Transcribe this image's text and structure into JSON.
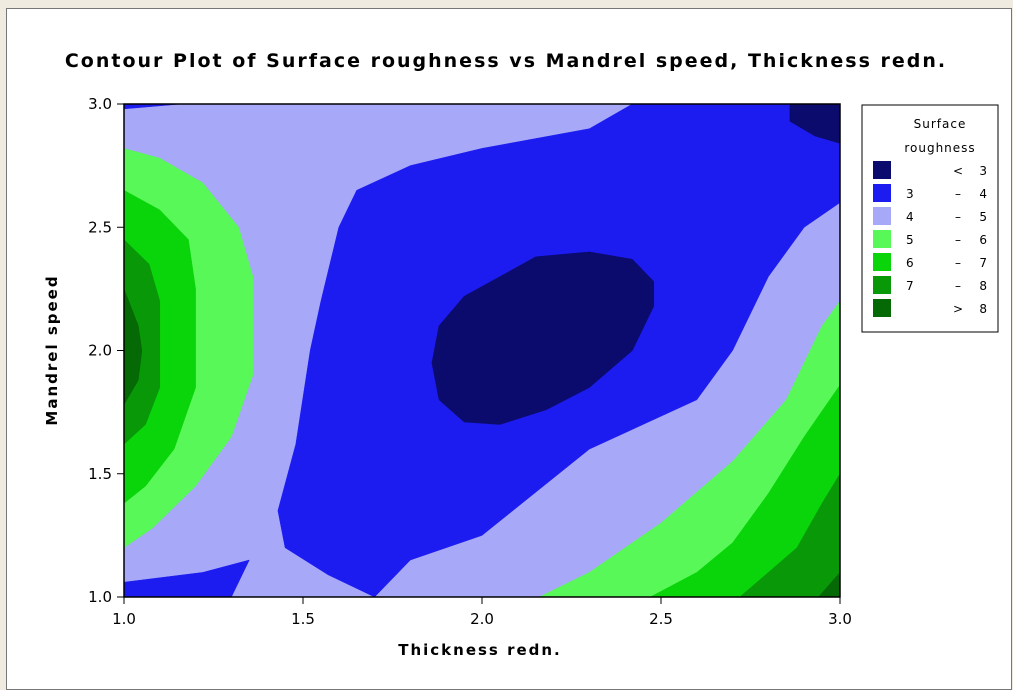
{
  "chart_data": {
    "type": "contour",
    "title": "Contour Plot of Surface roughness vs Mandrel speed, Thickness redn.",
    "xlabel": "Thickness redn.",
    "ylabel": "Mandrel speed",
    "xlim": [
      1.0,
      3.0
    ],
    "ylim": [
      1.0,
      3.0
    ],
    "xticks": [
      "1.0",
      "1.5",
      "2.0",
      "2.5",
      "3.0"
    ],
    "yticks": [
      "1.0",
      "1.5",
      "2.0",
      "2.5",
      "3.0"
    ],
    "legend": {
      "title_lines": [
        "Surface",
        "roughness"
      ],
      "placement": "right",
      "entries": [
        {
          "lo": "",
          "sep": "<",
          "hi": "3",
          "color": "#0b0b6e"
        },
        {
          "lo": "3",
          "sep": "–",
          "hi": "4",
          "color": "#1c1cf0"
        },
        {
          "lo": "4",
          "sep": "–",
          "hi": "5",
          "color": "#a8a8f8"
        },
        {
          "lo": "5",
          "sep": "–",
          "hi": "6",
          "color": "#58f858"
        },
        {
          "lo": "6",
          "sep": "–",
          "hi": "7",
          "color": "#0ad40a"
        },
        {
          "lo": "7",
          "sep": "–",
          "hi": "8",
          "color": "#089808"
        },
        {
          "lo": "",
          "sep": ">",
          "hi": "8",
          "color": "#056905"
        }
      ]
    },
    "regions": [
      {
        "level": "4-5",
        "points": [
          [
            1.0,
            3.0
          ],
          [
            3.0,
            3.0
          ],
          [
            3.0,
            1.0
          ],
          [
            1.0,
            1.0
          ]
        ]
      },
      {
        "level": "5-6",
        "points": [
          [
            1.0,
            2.82
          ],
          [
            1.1,
            2.78
          ],
          [
            1.22,
            2.68
          ],
          [
            1.32,
            2.5
          ],
          [
            1.36,
            2.3
          ],
          [
            1.36,
            1.9
          ],
          [
            1.3,
            1.65
          ],
          [
            1.2,
            1.45
          ],
          [
            1.08,
            1.28
          ],
          [
            1.0,
            1.2
          ]
        ]
      },
      {
        "level": "6-7",
        "points": [
          [
            1.0,
            2.65
          ],
          [
            1.1,
            2.57
          ],
          [
            1.18,
            2.45
          ],
          [
            1.2,
            2.25
          ],
          [
            1.2,
            1.85
          ],
          [
            1.14,
            1.6
          ],
          [
            1.06,
            1.45
          ],
          [
            1.0,
            1.38
          ]
        ]
      },
      {
        "level": "7-8",
        "points": [
          [
            1.0,
            2.45
          ],
          [
            1.07,
            2.35
          ],
          [
            1.1,
            2.2
          ],
          [
            1.1,
            1.85
          ],
          [
            1.06,
            1.7
          ],
          [
            1.0,
            1.62
          ]
        ]
      },
      {
        "level": ">8",
        "points": [
          [
            1.0,
            2.25
          ],
          [
            1.04,
            2.1
          ],
          [
            1.05,
            2.0
          ],
          [
            1.04,
            1.88
          ],
          [
            1.0,
            1.78
          ]
        ]
      },
      {
        "level": "3-4",
        "points": [
          [
            1.7,
            1.0
          ],
          [
            1.57,
            1.09
          ],
          [
            1.45,
            1.2
          ],
          [
            1.43,
            1.35
          ],
          [
            1.48,
            1.62
          ],
          [
            1.52,
            2.0
          ],
          [
            1.55,
            2.2
          ],
          [
            1.6,
            2.5
          ],
          [
            1.65,
            2.65
          ],
          [
            1.8,
            2.75
          ],
          [
            2.0,
            2.82
          ],
          [
            2.3,
            2.9
          ],
          [
            2.42,
            3.0
          ],
          [
            3.0,
            3.0
          ],
          [
            3.0,
            2.6
          ],
          [
            2.9,
            2.5
          ],
          [
            2.8,
            2.3
          ],
          [
            2.7,
            2.0
          ],
          [
            2.6,
            1.8
          ],
          [
            2.3,
            1.6
          ],
          [
            2.0,
            1.25
          ],
          [
            1.8,
            1.15
          ]
        ]
      },
      {
        "level": "3-4",
        "points": [
          [
            1.0,
            3.0
          ],
          [
            1.16,
            3.0
          ],
          [
            1.0,
            2.98
          ]
        ]
      },
      {
        "level": "3-4",
        "points": [
          [
            1.0,
            1.0
          ],
          [
            1.0,
            1.06
          ],
          [
            1.22,
            1.1
          ],
          [
            1.35,
            1.15
          ],
          [
            1.3,
            1.0
          ]
        ]
      },
      {
        "level": "<3",
        "points": [
          [
            2.05,
            2.3
          ],
          [
            2.15,
            2.38
          ],
          [
            2.3,
            2.4
          ],
          [
            2.42,
            2.37
          ],
          [
            2.48,
            2.28
          ],
          [
            2.48,
            2.18
          ],
          [
            2.42,
            2.0
          ],
          [
            2.3,
            1.85
          ],
          [
            2.18,
            1.76
          ],
          [
            2.05,
            1.7
          ],
          [
            1.95,
            1.71
          ],
          [
            1.88,
            1.8
          ],
          [
            1.86,
            1.95
          ],
          [
            1.88,
            2.1
          ],
          [
            1.95,
            2.22
          ]
        ]
      },
      {
        "level": "<3",
        "points": [
          [
            2.86,
            3.0
          ],
          [
            3.0,
            3.0
          ],
          [
            3.0,
            2.84
          ],
          [
            2.93,
            2.87
          ],
          [
            2.86,
            2.93
          ]
        ]
      },
      {
        "level": "5-6",
        "points": [
          [
            2.16,
            1.0
          ],
          [
            2.3,
            1.1
          ],
          [
            2.5,
            1.3
          ],
          [
            2.7,
            1.55
          ],
          [
            2.85,
            1.8
          ],
          [
            2.95,
            2.1
          ],
          [
            3.0,
            2.2
          ],
          [
            3.0,
            1.0
          ]
        ]
      },
      {
        "level": "6-7",
        "points": [
          [
            2.47,
            1.0
          ],
          [
            2.6,
            1.1
          ],
          [
            2.7,
            1.22
          ],
          [
            2.8,
            1.42
          ],
          [
            2.9,
            1.65
          ],
          [
            3.0,
            1.86
          ],
          [
            3.0,
            1.0
          ]
        ]
      },
      {
        "level": "7-8",
        "points": [
          [
            2.72,
            1.0
          ],
          [
            2.8,
            1.1
          ],
          [
            2.88,
            1.2
          ],
          [
            2.95,
            1.38
          ],
          [
            3.0,
            1.5
          ],
          [
            3.0,
            1.0
          ]
        ]
      },
      {
        "level": ">8",
        "points": [
          [
            2.94,
            1.0
          ],
          [
            3.0,
            1.1
          ],
          [
            3.0,
            1.0
          ]
        ]
      }
    ]
  }
}
